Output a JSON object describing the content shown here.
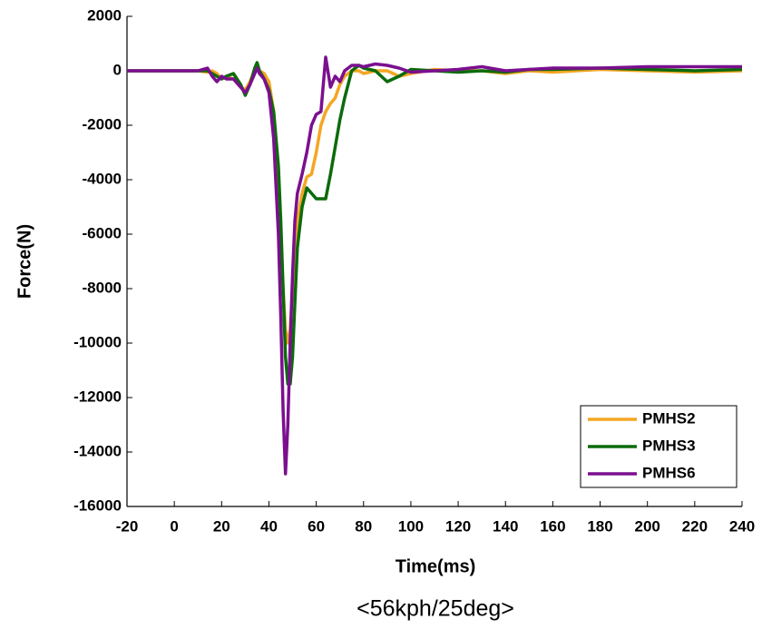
{
  "chart_data": {
    "type": "line",
    "title": "<56kph/25deg>",
    "x_label": "Time(ms)",
    "y_label": "Force(N)",
    "x": [
      -20,
      0,
      10,
      14,
      16,
      18,
      20,
      22,
      25,
      28,
      30,
      32,
      34,
      35,
      36,
      38,
      40,
      42,
      44,
      45,
      46,
      47,
      48,
      49,
      50,
      51,
      52,
      54,
      56,
      58,
      60,
      62,
      64,
      66,
      68,
      70,
      72,
      75,
      78,
      80,
      85,
      90,
      95,
      100,
      110,
      120,
      130,
      140,
      150,
      160,
      180,
      200,
      220,
      240
    ],
    "series": [
      {
        "name": "PMHS2",
        "color": "#f5a623",
        "values": [
          0,
          0,
          0,
          -50,
          0,
          -100,
          -300,
          -200,
          -300,
          -600,
          -700,
          -400,
          0,
          100,
          0,
          -100,
          -400,
          -1500,
          -4000,
          -6000,
          -8000,
          -9500,
          -10000,
          -9500,
          -8000,
          -6500,
          -5500,
          -4500,
          -3900,
          -3800,
          -3000,
          -2000,
          -1500,
          -1200,
          -1000,
          -500,
          -200,
          0,
          0,
          -100,
          0,
          0,
          -200,
          -100,
          50,
          0,
          0,
          -100,
          0,
          -50,
          50,
          0,
          -50,
          0
        ]
      },
      {
        "name": "PMHS3",
        "color": "#0b6b0b",
        "values": [
          0,
          0,
          0,
          0,
          -100,
          -200,
          -300,
          -200,
          -100,
          -500,
          -900,
          -500,
          100,
          300,
          0,
          -300,
          -700,
          -1500,
          -3500,
          -5500,
          -8000,
          -10500,
          -11500,
          -11500,
          -10500,
          -8500,
          -6500,
          -5000,
          -4300,
          -4500,
          -4700,
          -4700,
          -4700,
          -3800,
          -2800,
          -1800,
          -1000,
          0,
          200,
          100,
          0,
          -400,
          -200,
          50,
          0,
          -50,
          0,
          -50,
          50,
          50,
          100,
          50,
          0,
          50
        ]
      },
      {
        "name": "PMHS6",
        "color": "#7b0f8f",
        "values": [
          0,
          0,
          0,
          100,
          -200,
          -400,
          -200,
          -300,
          -300,
          -600,
          -800,
          -500,
          -100,
          100,
          -100,
          -300,
          -800,
          -2500,
          -6000,
          -9000,
          -12500,
          -14800,
          -13000,
          -10000,
          -7500,
          -5500,
          -4500,
          -3800,
          -3000,
          -2000,
          -1600,
          -1500,
          500,
          -600,
          -200,
          -400,
          0,
          200,
          200,
          150,
          250,
          200,
          100,
          -50,
          0,
          50,
          150,
          0,
          50,
          100,
          100,
          150,
          150,
          150
        ]
      }
    ],
    "xlim": [
      -20,
      240
    ],
    "xticks": [
      -20,
      0,
      20,
      40,
      60,
      80,
      100,
      120,
      140,
      160,
      180,
      200,
      220,
      240
    ],
    "ylim": [
      -16000,
      2000
    ],
    "yticks": [
      -16000,
      -14000,
      -12000,
      -10000,
      -8000,
      -6000,
      -4000,
      -2000,
      0,
      2000
    ],
    "legend": "lower right"
  }
}
